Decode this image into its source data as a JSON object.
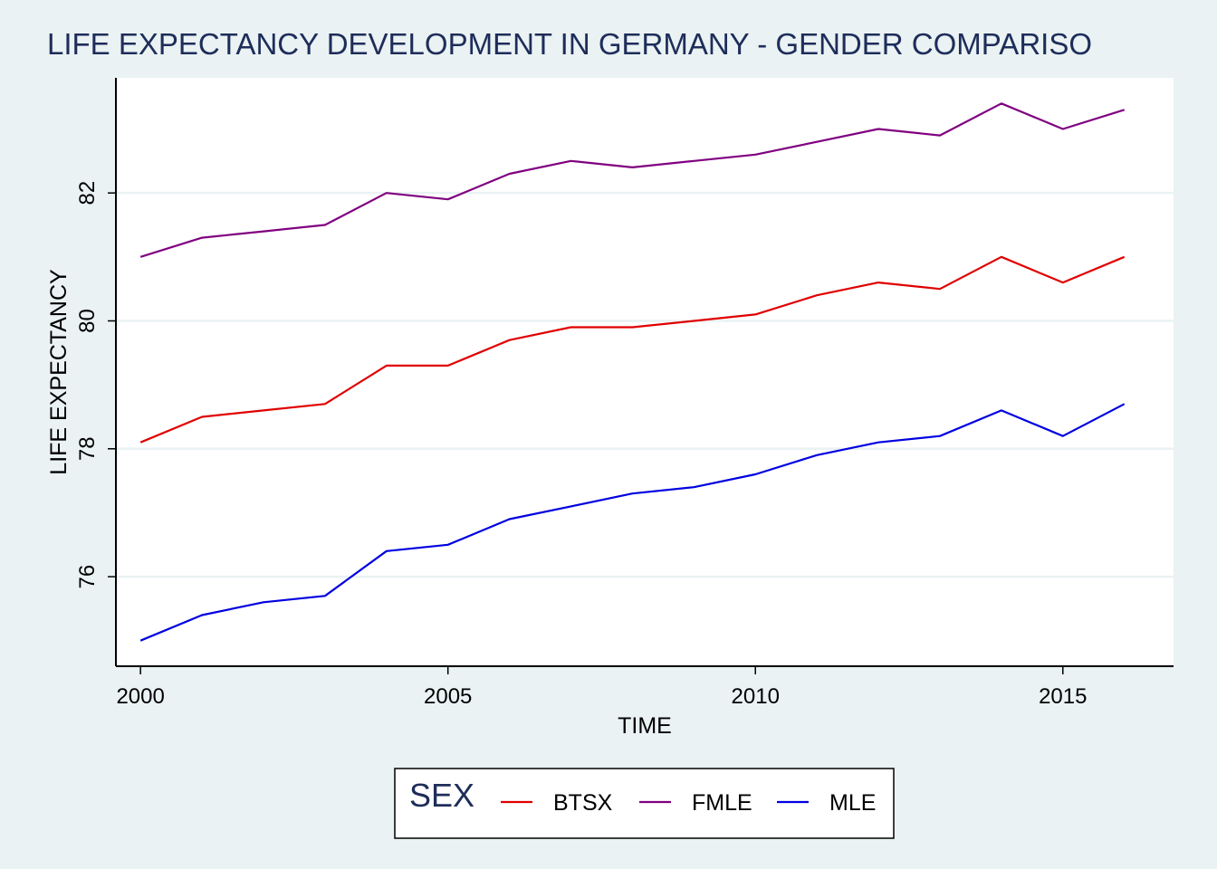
{
  "chart_data": {
    "type": "line",
    "title": "LIFE EXPECTANCY DEVELOPMENT IN GERMANY - GENDER COMPARISO",
    "xlabel": "TIME",
    "ylabel": "LIFE EXPECTANCY",
    "xlim": [
      1999.6,
      2016.8
    ],
    "ylim": [
      74.6,
      83.8
    ],
    "xticks": [
      2000,
      2005,
      2010,
      2015
    ],
    "yticks": [
      76,
      78,
      80,
      82
    ],
    "grid": "horizontal",
    "legend": {
      "title": "SEX",
      "position": "bottom-center"
    },
    "x": [
      2000,
      2001,
      2002,
      2003,
      2004,
      2005,
      2006,
      2007,
      2008,
      2009,
      2010,
      2011,
      2012,
      2013,
      2014,
      2015,
      2016
    ],
    "series": [
      {
        "name": "BTSX",
        "color": "#E00000",
        "values": [
          78.1,
          78.5,
          78.6,
          78.7,
          79.3,
          79.3,
          79.7,
          79.9,
          79.9,
          80.0,
          80.1,
          80.4,
          80.6,
          80.5,
          81.0,
          80.6,
          81.0
        ]
      },
      {
        "name": "FMLE",
        "color": "#800080",
        "values": [
          81.0,
          81.3,
          81.4,
          81.5,
          82.0,
          81.9,
          82.3,
          82.5,
          82.4,
          82.5,
          82.6,
          82.8,
          83.0,
          82.9,
          83.4,
          83.0,
          83.3
        ]
      },
      {
        "name": "MLE",
        "color": "#0000E0",
        "values": [
          75.0,
          75.4,
          75.6,
          75.7,
          76.4,
          76.5,
          76.9,
          77.1,
          77.3,
          77.4,
          77.6,
          77.9,
          78.1,
          78.2,
          78.6,
          78.2,
          78.7
        ]
      }
    ]
  }
}
